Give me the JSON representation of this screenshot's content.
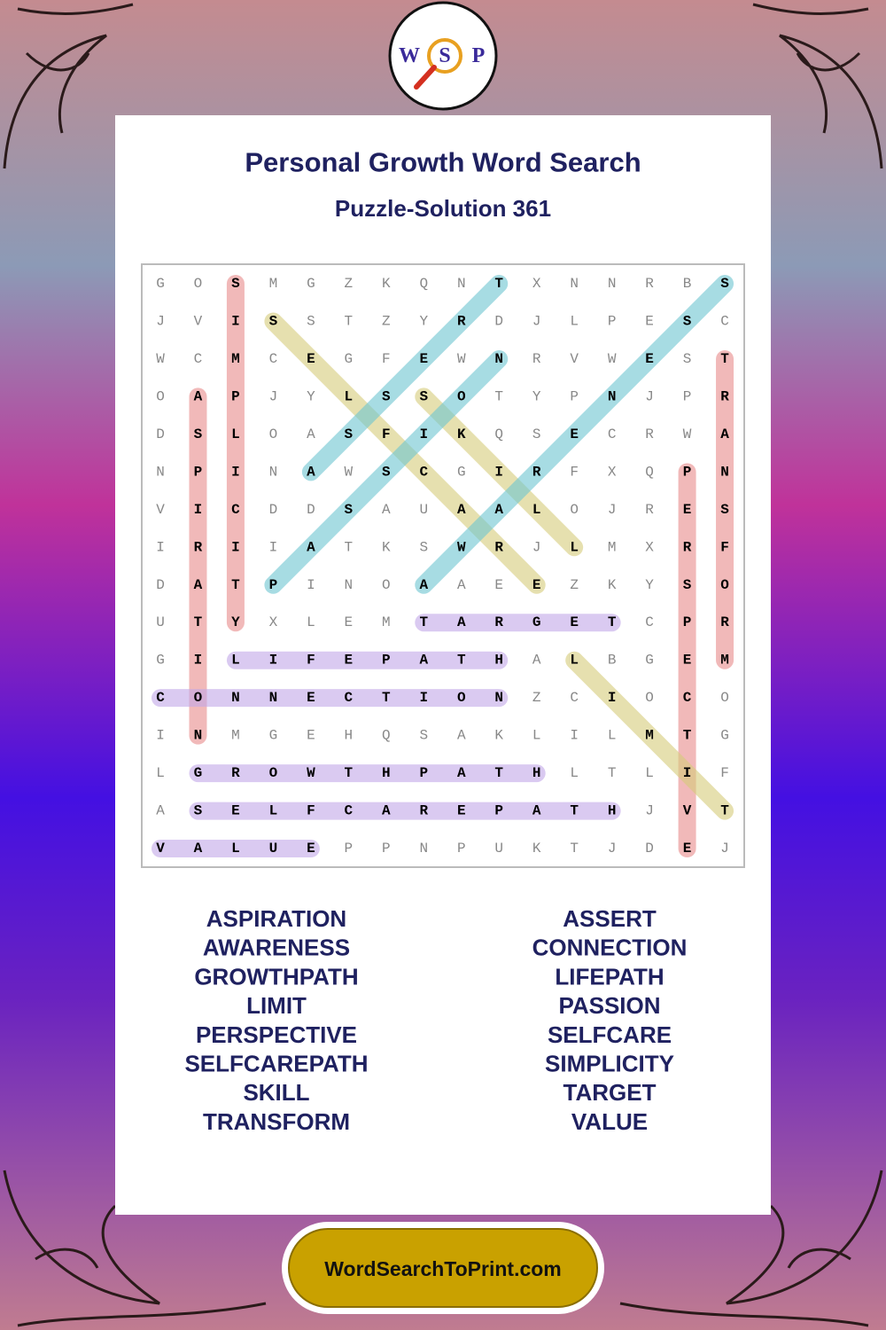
{
  "logo": {
    "letters": [
      "W",
      "S",
      "P"
    ]
  },
  "header": {
    "title": "Personal Growth Word Search",
    "subtitle": "Puzzle-Solution 361"
  },
  "grid": {
    "rows": [
      [
        "G",
        "O",
        "S",
        "M",
        "G",
        "Z",
        "K",
        "Q",
        "N",
        "T",
        "X",
        "N",
        "N",
        "R",
        "B",
        "S"
      ],
      [
        "J",
        "V",
        "I",
        "S",
        "S",
        "T",
        "Z",
        "Y",
        "R",
        "D",
        "J",
        "L",
        "P",
        "E",
        "S",
        "C"
      ],
      [
        "W",
        "C",
        "M",
        "C",
        "E",
        "G",
        "F",
        "E",
        "W",
        "N",
        "R",
        "V",
        "W",
        "E",
        "S",
        "T"
      ],
      [
        "O",
        "A",
        "P",
        "J",
        "Y",
        "L",
        "S",
        "S",
        "O",
        "T",
        "Y",
        "P",
        "N",
        "J",
        "P",
        "R"
      ],
      [
        "D",
        "S",
        "L",
        "O",
        "A",
        "S",
        "F",
        "I",
        "K",
        "Q",
        "S",
        "E",
        "C",
        "R",
        "W",
        "A"
      ],
      [
        "N",
        "P",
        "I",
        "N",
        "A",
        "W",
        "S",
        "C",
        "G",
        "I",
        "R",
        "F",
        "X",
        "Q",
        "P",
        "N"
      ],
      [
        "V",
        "I",
        "C",
        "D",
        "D",
        "S",
        "A",
        "U",
        "A",
        "A",
        "L",
        "O",
        "J",
        "R",
        "E",
        "S"
      ],
      [
        "I",
        "R",
        "I",
        "I",
        "A",
        "T",
        "K",
        "S",
        "W",
        "R",
        "J",
        "L",
        "M",
        "X",
        "R",
        "F"
      ],
      [
        "D",
        "A",
        "T",
        "P",
        "I",
        "N",
        "O",
        "A",
        "A",
        "E",
        "E",
        "Z",
        "K",
        "Y",
        "S",
        "O"
      ],
      [
        "U",
        "T",
        "Y",
        "X",
        "L",
        "E",
        "M",
        "T",
        "A",
        "R",
        "G",
        "E",
        "T",
        "C",
        "P",
        "R"
      ],
      [
        "G",
        "I",
        "L",
        "I",
        "F",
        "E",
        "P",
        "A",
        "T",
        "H",
        "A",
        "L",
        "B",
        "G",
        "E",
        "M"
      ],
      [
        "C",
        "O",
        "N",
        "N",
        "E",
        "C",
        "T",
        "I",
        "O",
        "N",
        "Z",
        "C",
        "I",
        "O",
        "C",
        "O"
      ],
      [
        "I",
        "N",
        "M",
        "G",
        "E",
        "H",
        "Q",
        "S",
        "A",
        "K",
        "L",
        "I",
        "L",
        "M",
        "T",
        "G"
      ],
      [
        "L",
        "G",
        "R",
        "O",
        "W",
        "T",
        "H",
        "P",
        "A",
        "T",
        "H",
        "L",
        "T",
        "L",
        "I",
        "F"
      ],
      [
        "A",
        "S",
        "E",
        "L",
        "F",
        "C",
        "A",
        "R",
        "E",
        "P",
        "A",
        "T",
        "H",
        "J",
        "V",
        "T"
      ],
      [
        "V",
        "A",
        "L",
        "U",
        "E",
        "P",
        "P",
        "N",
        "P",
        "U",
        "K",
        "T",
        "J",
        "D",
        "E",
        "J"
      ]
    ],
    "highlights": [
      {
        "from": [
          0,
          2
        ],
        "to": [
          9,
          2
        ],
        "color": "#e88a8a"
      },
      {
        "from": [
          3,
          1
        ],
        "to": [
          12,
          1
        ],
        "color": "#e88a8a"
      },
      {
        "from": [
          2,
          15
        ],
        "to": [
          10,
          15
        ],
        "color": "#e88a8a"
      },
      {
        "from": [
          5,
          14
        ],
        "to": [
          15,
          14
        ],
        "color": "#e88a8a"
      },
      {
        "from": [
          1,
          3
        ],
        "to": [
          8,
          10
        ],
        "color": "#d6cc7a"
      },
      {
        "from": [
          3,
          7
        ],
        "to": [
          7,
          11
        ],
        "color": "#d6cc7a"
      },
      {
        "from": [
          10,
          11
        ],
        "to": [
          14,
          15
        ],
        "color": "#d6cc7a"
      },
      {
        "from": [
          8,
          3
        ],
        "to": [
          2,
          9
        ],
        "color": "#6cc4d0"
      },
      {
        "from": [
          5,
          4
        ],
        "to": [
          0,
          9
        ],
        "color": "#6cc4d0"
      },
      {
        "from": [
          8,
          7
        ],
        "to": [
          0,
          15
        ],
        "color": "#6cc4d0"
      },
      {
        "from": [
          9,
          7
        ],
        "to": [
          9,
          12
        ],
        "color": "#c2a6e8"
      },
      {
        "from": [
          10,
          2
        ],
        "to": [
          10,
          9
        ],
        "color": "#c2a6e8"
      },
      {
        "from": [
          11,
          0
        ],
        "to": [
          11,
          9
        ],
        "color": "#c2a6e8"
      },
      {
        "from": [
          13,
          1
        ],
        "to": [
          13,
          10
        ],
        "color": "#c2a6e8"
      },
      {
        "from": [
          14,
          1
        ],
        "to": [
          14,
          12
        ],
        "color": "#c2a6e8"
      },
      {
        "from": [
          15,
          0
        ],
        "to": [
          15,
          4
        ],
        "color": "#c2a6e8"
      }
    ]
  },
  "word_list": {
    "left": [
      "ASPIRATION",
      "AWARENESS",
      "GROWTHPATH",
      "LIMIT",
      "PERSPECTIVE",
      "SELFCAREPATH",
      "SKILL",
      "TRANSFORM"
    ],
    "right": [
      "ASSERT",
      "CONNECTION",
      "LIFEPATH",
      "PASSION",
      "SELFCARE",
      "SIMPLICITY",
      "TARGET",
      "VALUE"
    ]
  },
  "footer": {
    "site": "WordSearchToPrint.com"
  }
}
